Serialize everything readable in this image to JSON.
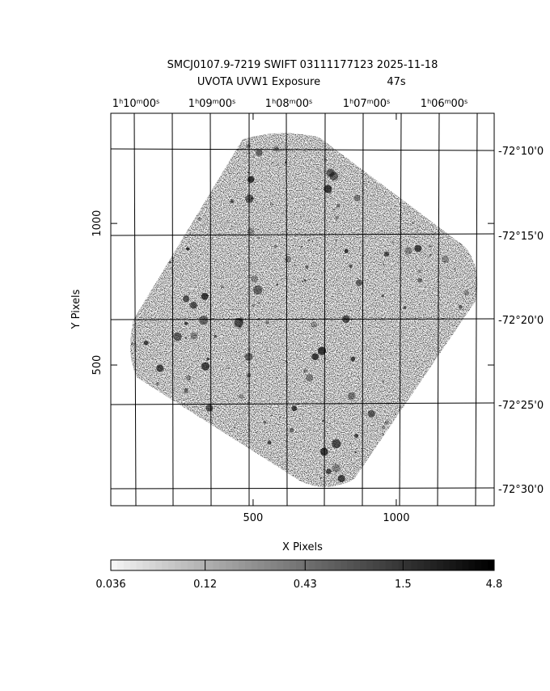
{
  "chart_data": {
    "type": "image",
    "title": "SMCJ0107.9-7219 SWIFT 03111177123 2025-11-18",
    "subtitle": "UVOTA UVW1 Exposure",
    "exposure": "47s",
    "xlabel": "X Pixels",
    "ylabel": "Y Pixels",
    "xlim": [
      3,
      1342
    ],
    "ylim": [
      3,
      1389
    ],
    "xticks": [
      500,
      1000
    ],
    "yticks": [
      500,
      1000
    ],
    "ra_labels": [
      [
        "1",
        "h",
        "10",
        "m",
        "00",
        "s"
      ],
      [
        "1",
        "h",
        "09",
        "m",
        "00",
        "s"
      ],
      [
        "1",
        "h",
        "08",
        "m",
        "00",
        "s"
      ],
      [
        "1",
        "h",
        "07",
        "m",
        "00",
        "s"
      ],
      [
        "1",
        "h",
        "06",
        "m",
        "00",
        "s"
      ]
    ],
    "dec_labels": [
      "-72°10'0",
      "-72°15'0",
      "-72°20'0",
      "-72°25'0",
      "-72°30'0"
    ],
    "colorbar": {
      "scale": "log",
      "lim": [
        0.036,
        4.8
      ],
      "ticks": [
        0.036,
        0.12,
        0.43,
        1.5,
        4.8
      ]
    }
  }
}
